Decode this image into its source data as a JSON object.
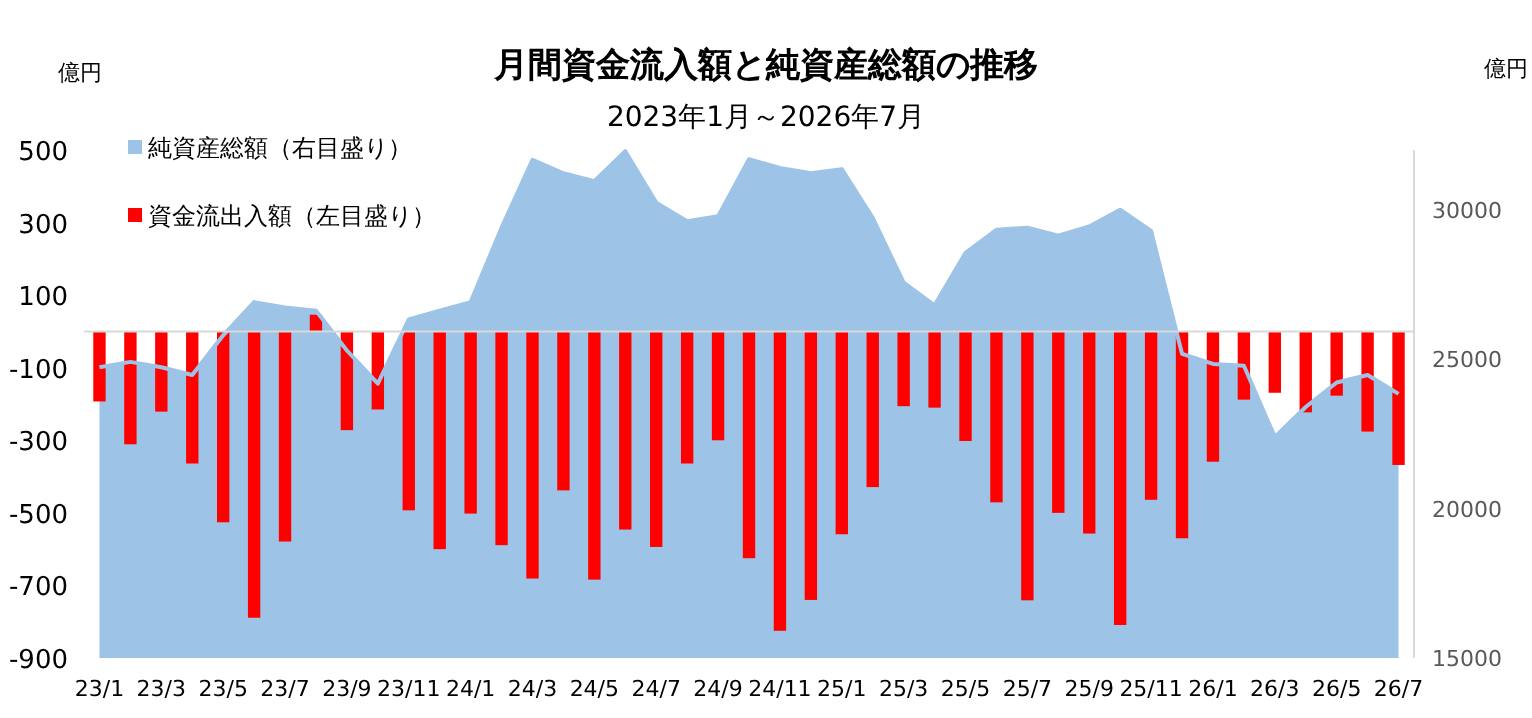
{
  "chart_data": {
    "type": "bar",
    "title": "月間資金流入額と純資産総額の推移",
    "subtitle": "2023年1月～2026年7月",
    "ylabel": "億円",
    "y2label": "億円",
    "categories": [
      "23/1",
      null,
      "23/3",
      null,
      "23/5",
      null,
      "23/7",
      null,
      "23/9",
      null,
      "23/11",
      null,
      "24/1",
      null,
      "24/3",
      null,
      "24/5",
      null,
      "24/7",
      null,
      "24/9",
      null,
      "24/11",
      null,
      "25/1",
      null,
      "25/3",
      null,
      "25/5",
      null,
      "25/7",
      null,
      "25/9",
      null,
      "25/11",
      null,
      "26/1",
      null,
      "26/3",
      null,
      "26/5",
      null,
      "26/7"
    ],
    "series": [
      {
        "name": "純資産総額（右目盛り）",
        "type": "area",
        "axis": "y2",
        "color": "#9dc3e6",
        "values": [
          24730,
          24910,
          24730,
          24470,
          25800,
          26910,
          26730,
          26620,
          25290,
          24180,
          26330,
          26620,
          26910,
          29400,
          31670,
          31220,
          30960,
          31960,
          30240,
          29620,
          29780,
          31690,
          31400,
          31220,
          31360,
          29730,
          27560,
          26800,
          28560,
          29330,
          29400,
          29130,
          29440,
          30000,
          29290,
          25180,
          24840,
          24780,
          22400,
          23400,
          24220,
          24470,
          23840
        ]
      },
      {
        "name": "資金流出入額（左目盛り）",
        "axis": "y",
        "color": "#ff0000",
        "values": [
          -193,
          -311,
          -221,
          -364,
          -526,
          -789,
          -579,
          46,
          -272,
          -215,
          -493,
          -600,
          -502,
          -589,
          -681,
          -438,
          -684,
          -546,
          -594,
          -364,
          -300,
          -625,
          -825,
          -740,
          -559,
          -429,
          -206,
          -210,
          -302,
          -471,
          -741,
          -500,
          -557,
          -809,
          -464,
          -570,
          -359,
          -188,
          -169,
          -223,
          -177,
          -276,
          -368
        ]
      }
    ],
    "ylim": [
      -900,
      500
    ],
    "yticks": [
      -900,
      -700,
      -500,
      -300,
      -100,
      100,
      300,
      500
    ],
    "y2lim": [
      15000,
      32000
    ],
    "y2ticks": [
      15000,
      20000,
      25000,
      30000
    ],
    "grid": false,
    "legend": "top left"
  }
}
